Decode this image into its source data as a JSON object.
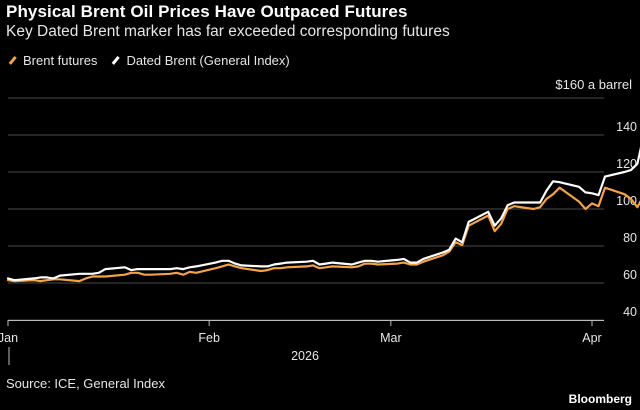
{
  "title": "Physical Brent Oil Prices Have Outpaced Futures",
  "subtitle": "Key Dated Brent marker has far exceeded corresponding futures",
  "unit_label": "$160 a barrel",
  "source": "Source: ICE, General Index",
  "brand": "Bloomberg",
  "colors": {
    "background": "#000000",
    "brent_futures": "#f2a24a",
    "dated_brent": "#ffffff",
    "grid": "#4a4a4a"
  },
  "chart_data": {
    "type": "line",
    "title": "Physical Brent Oil Prices Have Outpaced Futures",
    "ylim": [
      40,
      160
    ],
    "yticks": [
      40,
      60,
      80,
      100,
      120,
      140
    ],
    "xlim": [
      "2026-01-01",
      "2026-04-04"
    ],
    "xticks": [
      {
        "date": "2026-01-01",
        "label": "Jan"
      },
      {
        "date": "2026-02-01",
        "label": "Feb"
      },
      {
        "date": "2026-03-01",
        "label": "Mar"
      },
      {
        "date": "2026-04-01",
        "label": "Apr"
      }
    ],
    "year_label": "2026",
    "grid": true,
    "legend_position": "top-left",
    "series": [
      {
        "name": "Brent futures",
        "color": "#f2a24a",
        "points": [
          [
            "2026-01-01",
            61.5
          ],
          [
            "2026-01-02",
            61
          ],
          [
            "2026-01-05",
            61.5
          ],
          [
            "2026-01-06",
            61
          ],
          [
            "2026-01-07",
            61.5
          ],
          [
            "2026-01-08",
            62
          ],
          [
            "2026-01-09",
            62
          ],
          [
            "2026-01-12",
            61
          ],
          [
            "2026-01-13",
            62.5
          ],
          [
            "2026-01-14",
            63.5
          ],
          [
            "2026-01-15",
            63.5
          ],
          [
            "2026-01-16",
            63.5
          ],
          [
            "2026-01-19",
            64.5
          ],
          [
            "2026-01-20",
            65.5
          ],
          [
            "2026-01-21",
            65.5
          ],
          [
            "2026-01-22",
            64.5
          ],
          [
            "2026-01-23",
            64.5
          ],
          [
            "2026-01-26",
            65
          ],
          [
            "2026-01-27",
            65.5
          ],
          [
            "2026-01-28",
            64.5
          ],
          [
            "2026-01-29",
            66
          ],
          [
            "2026-01-30",
            65.5
          ],
          [
            "2026-02-02",
            68
          ],
          [
            "2026-02-03",
            69
          ],
          [
            "2026-02-04",
            70
          ],
          [
            "2026-02-05",
            69
          ],
          [
            "2026-02-06",
            68
          ],
          [
            "2026-02-09",
            66.5
          ],
          [
            "2026-02-10",
            67
          ],
          [
            "2026-02-11",
            68
          ],
          [
            "2026-02-12",
            68
          ],
          [
            "2026-02-13",
            68.5
          ],
          [
            "2026-02-16",
            69
          ],
          [
            "2026-02-17",
            69.5
          ],
          [
            "2026-02-18",
            68
          ],
          [
            "2026-02-19",
            68.5
          ],
          [
            "2026-02-20",
            69
          ],
          [
            "2026-02-23",
            68.5
          ],
          [
            "2026-02-24",
            69
          ],
          [
            "2026-02-25",
            70.5
          ],
          [
            "2026-02-26",
            70.5
          ],
          [
            "2026-02-27",
            70
          ],
          [
            "2026-03-02",
            70.5
          ],
          [
            "2026-03-03",
            71
          ],
          [
            "2026-03-04",
            70
          ],
          [
            "2026-03-05",
            70
          ],
          [
            "2026-03-06",
            71.5
          ],
          [
            "2026-03-09",
            75
          ],
          [
            "2026-03-10",
            77
          ],
          [
            "2026-03-11",
            82
          ],
          [
            "2026-03-12",
            80.5
          ],
          [
            "2026-03-13",
            91
          ],
          [
            "2026-03-16",
            96.5
          ],
          [
            "2026-03-17",
            88
          ],
          [
            "2026-03-18",
            92
          ],
          [
            "2026-03-19",
            100
          ],
          [
            "2026-03-20",
            101.5
          ],
          [
            "2026-03-23",
            100
          ],
          [
            "2026-03-24",
            101
          ],
          [
            "2026-03-25",
            105.5
          ],
          [
            "2026-03-26",
            108
          ],
          [
            "2026-03-27",
            111.5
          ],
          [
            "2026-03-30",
            104
          ],
          [
            "2026-03-31",
            100
          ],
          [
            "2026-04-01",
            103
          ],
          [
            "2026-04-02",
            101.5
          ],
          [
            "2026-04-03",
            111.5
          ],
          [
            "2026-04-06",
            108
          ],
          [
            "2026-04-07",
            105.5
          ],
          [
            "2026-04-08",
            101
          ],
          [
            "2026-04-09",
            107.5
          ]
        ]
      },
      {
        "name": "Dated Brent (General Index)",
        "color": "#ffffff",
        "points": [
          [
            "2026-01-01",
            62.5
          ],
          [
            "2026-01-02",
            61.5
          ],
          [
            "2026-01-05",
            62.5
          ],
          [
            "2026-01-06",
            63
          ],
          [
            "2026-01-07",
            63
          ],
          [
            "2026-01-08",
            62.5
          ],
          [
            "2026-01-09",
            64
          ],
          [
            "2026-01-12",
            65
          ],
          [
            "2026-01-13",
            65
          ],
          [
            "2026-01-14",
            65
          ],
          [
            "2026-01-15",
            65.5
          ],
          [
            "2026-01-16",
            67.5
          ],
          [
            "2026-01-19",
            68.5
          ],
          [
            "2026-01-20",
            67
          ],
          [
            "2026-01-21",
            67.5
          ],
          [
            "2026-01-22",
            67.5
          ],
          [
            "2026-01-23",
            67.5
          ],
          [
            "2026-01-26",
            67.5
          ],
          [
            "2026-01-27",
            68
          ],
          [
            "2026-01-28",
            67.5
          ],
          [
            "2026-01-29",
            68.5
          ],
          [
            "2026-01-30",
            69
          ],
          [
            "2026-02-02",
            71
          ],
          [
            "2026-02-03",
            72
          ],
          [
            "2026-02-04",
            72
          ],
          [
            "2026-02-05",
            70.5
          ],
          [
            "2026-02-06",
            69.5
          ],
          [
            "2026-02-09",
            69
          ],
          [
            "2026-02-10",
            69
          ],
          [
            "2026-02-11",
            70
          ],
          [
            "2026-02-12",
            70.5
          ],
          [
            "2026-02-13",
            71
          ],
          [
            "2026-02-16",
            71.5
          ],
          [
            "2026-02-17",
            72
          ],
          [
            "2026-02-18",
            70
          ],
          [
            "2026-02-19",
            70.5
          ],
          [
            "2026-02-20",
            71
          ],
          [
            "2026-02-23",
            70
          ],
          [
            "2026-02-24",
            71
          ],
          [
            "2026-02-25",
            72
          ],
          [
            "2026-02-26",
            72
          ],
          [
            "2026-02-27",
            71.5
          ],
          [
            "2026-03-02",
            72.5
          ],
          [
            "2026-03-03",
            73
          ],
          [
            "2026-03-04",
            71
          ],
          [
            "2026-03-05",
            71
          ],
          [
            "2026-03-06",
            73
          ],
          [
            "2026-03-09",
            76.5
          ],
          [
            "2026-03-10",
            78
          ],
          [
            "2026-03-11",
            84
          ],
          [
            "2026-03-12",
            82
          ],
          [
            "2026-03-13",
            93
          ],
          [
            "2026-03-16",
            98.5
          ],
          [
            "2026-03-17",
            91
          ],
          [
            "2026-03-18",
            95
          ],
          [
            "2026-03-19",
            102
          ],
          [
            "2026-03-20",
            103.5
          ],
          [
            "2026-03-23",
            103.5
          ],
          [
            "2026-03-24",
            103.5
          ],
          [
            "2026-03-25",
            110
          ],
          [
            "2026-03-26",
            115
          ],
          [
            "2026-03-27",
            114.5
          ],
          [
            "2026-03-30",
            112
          ],
          [
            "2026-03-31",
            109
          ],
          [
            "2026-04-01",
            108.5
          ],
          [
            "2026-04-02",
            107.5
          ],
          [
            "2026-04-03",
            117.5
          ],
          [
            "2026-04-06",
            120
          ],
          [
            "2026-04-07",
            121
          ],
          [
            "2026-04-08",
            124.5
          ],
          [
            "2026-04-09",
            140.5
          ]
        ]
      }
    ]
  }
}
